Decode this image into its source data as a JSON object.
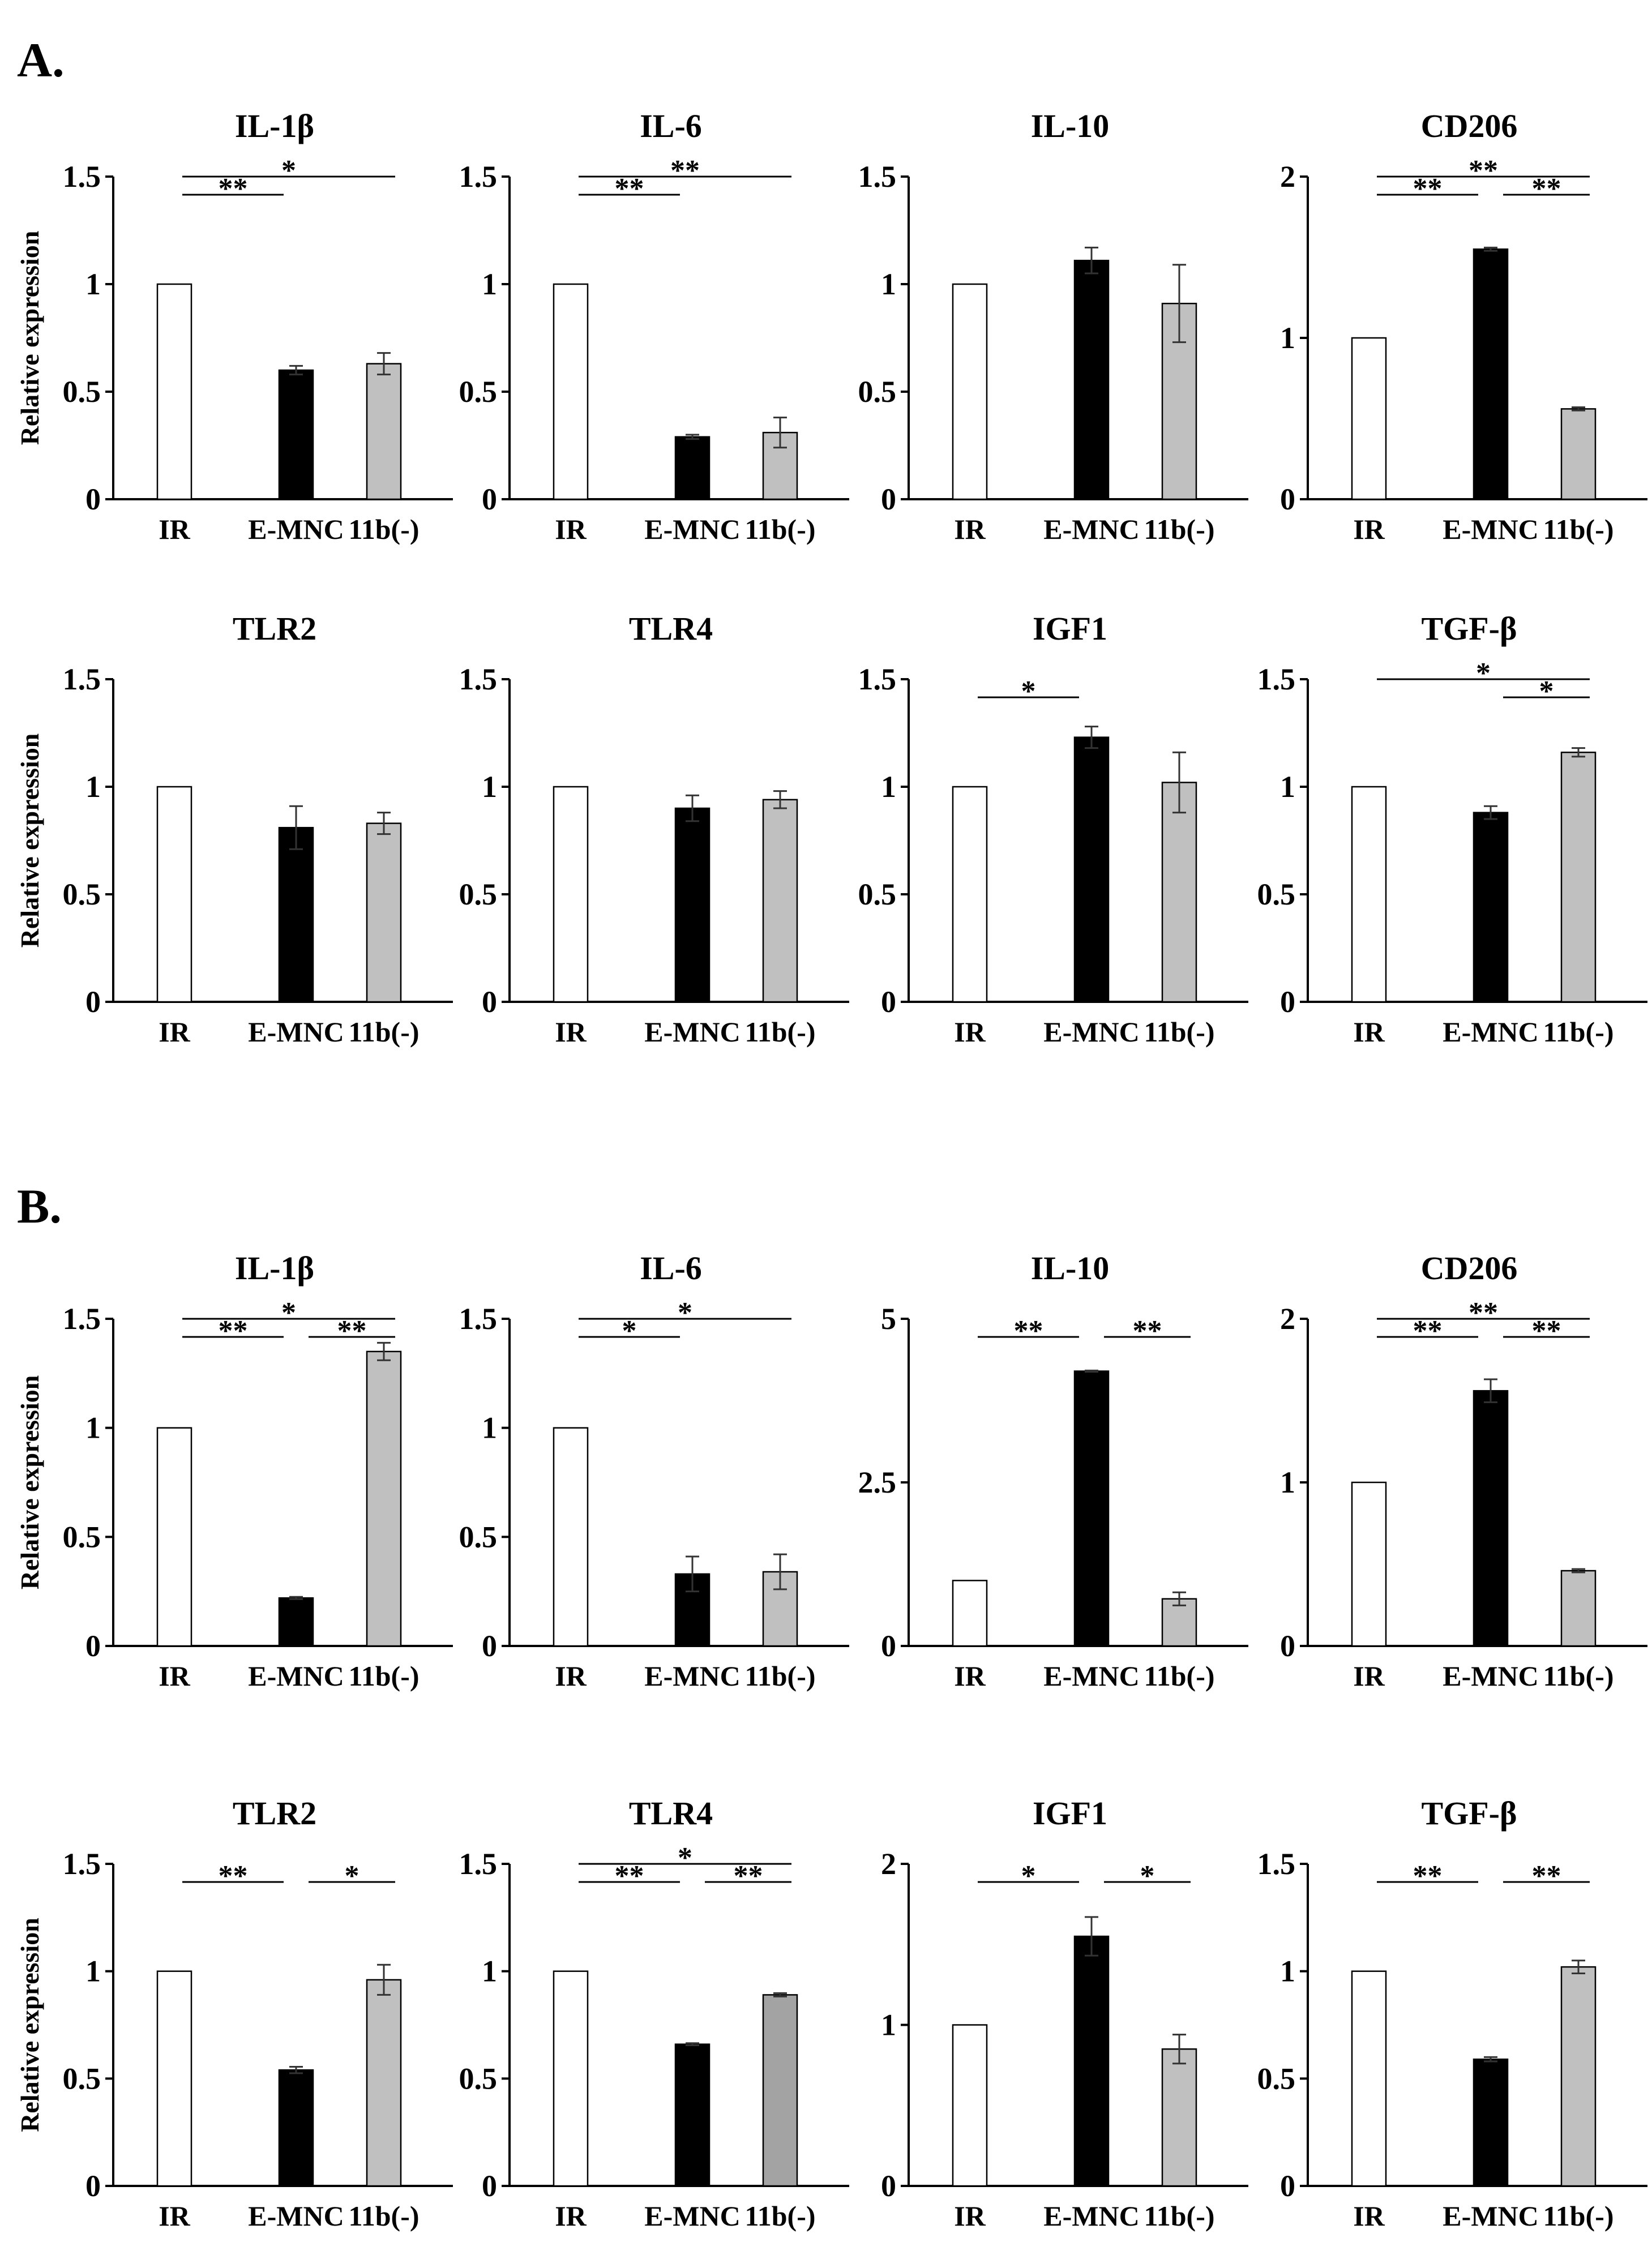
{
  "panels": [
    {
      "label": "A."
    },
    {
      "label": "B."
    }
  ],
  "colors": {
    "IR": "#ffffff",
    "E-MNC": "#000000",
    "11b(-)": "#c0c0c0",
    "11b(-)_dark": "#a3a3a3",
    "axis": "#000000",
    "bracket": "#000000"
  },
  "chart_data": [
    {
      "panel": "A",
      "type": "bar",
      "title": "IL-1β",
      "categories": [
        "IR",
        "E-MNC",
        "11b(-)"
      ],
      "values": [
        1.0,
        0.6,
        0.63
      ],
      "errors": [
        0,
        0.02,
        0.05
      ],
      "ylim": [
        0,
        1.5
      ],
      "yticks": [
        "0",
        "0.5",
        "1",
        "1.5"
      ],
      "ylabel": "Relative expression",
      "significance": [
        {
          "from": 0,
          "to": 1,
          "label": "**"
        },
        {
          "from": 0,
          "to": 2,
          "label": "*"
        }
      ]
    },
    {
      "panel": "A",
      "type": "bar",
      "title": "IL-6",
      "categories": [
        "IR",
        "E-MNC",
        "11b(-)"
      ],
      "values": [
        1.0,
        0.29,
        0.31
      ],
      "errors": [
        0,
        0.01,
        0.07
      ],
      "ylim": [
        0,
        1.5
      ],
      "yticks": [
        "0",
        "0.5",
        "1",
        "1.5"
      ],
      "ylabel": "",
      "significance": [
        {
          "from": 0,
          "to": 1,
          "label": "**"
        },
        {
          "from": 0,
          "to": 2,
          "label": "**"
        }
      ]
    },
    {
      "panel": "A",
      "type": "bar",
      "title": "IL-10",
      "categories": [
        "IR",
        "E-MNC",
        "11b(-)"
      ],
      "values": [
        1.0,
        1.11,
        0.91
      ],
      "errors": [
        0,
        0.06,
        0.18
      ],
      "ylim": [
        0,
        1.5
      ],
      "yticks": [
        "0",
        "0.5",
        "1",
        "1.5"
      ],
      "ylabel": "",
      "significance": []
    },
    {
      "panel": "A",
      "type": "bar",
      "title": "CD206",
      "categories": [
        "IR",
        "E-MNC",
        "11b(-)"
      ],
      "values": [
        1.0,
        1.55,
        0.56
      ],
      "errors": [
        0,
        0.01,
        0.01
      ],
      "ylim": [
        0,
        2
      ],
      "yticks": [
        "0",
        "1",
        "2"
      ],
      "ylabel": "",
      "significance": [
        {
          "from": 0,
          "to": 1,
          "label": "**"
        },
        {
          "from": 1,
          "to": 2,
          "label": "**"
        },
        {
          "from": 0,
          "to": 2,
          "label": "**"
        }
      ]
    },
    {
      "panel": "A",
      "type": "bar",
      "title": "TLR2",
      "categories": [
        "IR",
        "E-MNC",
        "11b(-)"
      ],
      "values": [
        1.0,
        0.81,
        0.83
      ],
      "errors": [
        0,
        0.1,
        0.05
      ],
      "ylim": [
        0,
        1.5
      ],
      "yticks": [
        "0",
        "0.5",
        "1",
        "1.5"
      ],
      "ylabel": "Relative expression",
      "significance": []
    },
    {
      "panel": "A",
      "type": "bar",
      "title": "TLR4",
      "categories": [
        "IR",
        "E-MNC",
        "11b(-)"
      ],
      "values": [
        1.0,
        0.9,
        0.94
      ],
      "errors": [
        0,
        0.06,
        0.04
      ],
      "ylim": [
        0,
        1.5
      ],
      "yticks": [
        "0",
        "0.5",
        "1",
        "1.5"
      ],
      "ylabel": "",
      "significance": []
    },
    {
      "panel": "A",
      "type": "bar",
      "title": "IGF1",
      "categories": [
        "IR",
        "E-MNC",
        "11b(-)"
      ],
      "values": [
        1.0,
        1.23,
        1.02
      ],
      "errors": [
        0,
        0.05,
        0.14
      ],
      "ylim": [
        0,
        1.5
      ],
      "yticks": [
        "0",
        "0.5",
        "1",
        "1.5"
      ],
      "ylabel": "",
      "significance": [
        {
          "from": 0,
          "to": 1,
          "label": "*"
        }
      ]
    },
    {
      "panel": "A",
      "type": "bar",
      "title": "TGF-β",
      "categories": [
        "IR",
        "E-MNC",
        "11b(-)"
      ],
      "values": [
        1.0,
        0.88,
        1.16
      ],
      "errors": [
        0,
        0.03,
        0.02
      ],
      "ylim": [
        0,
        1.5
      ],
      "yticks": [
        "0",
        "0.5",
        "1",
        "1.5"
      ],
      "ylabel": "",
      "significance": [
        {
          "from": 1,
          "to": 2,
          "label": "*"
        },
        {
          "from": 0,
          "to": 2,
          "label": "*"
        }
      ]
    },
    {
      "panel": "B",
      "type": "bar",
      "title": "IL-1β",
      "categories": [
        "IR",
        "E-MNC",
        "11b(-)"
      ],
      "values": [
        1.0,
        0.22,
        1.35
      ],
      "errors": [
        0,
        0.005,
        0.04
      ],
      "ylim": [
        0,
        1.5
      ],
      "yticks": [
        "0",
        "0.5",
        "1",
        "1.5"
      ],
      "ylabel": "Relative expression",
      "significance": [
        {
          "from": 0,
          "to": 1,
          "label": "**"
        },
        {
          "from": 1,
          "to": 2,
          "label": "**"
        },
        {
          "from": 0,
          "to": 2,
          "label": "*"
        }
      ]
    },
    {
      "panel": "B",
      "type": "bar",
      "title": "IL-6",
      "categories": [
        "IR",
        "E-MNC",
        "11b(-)"
      ],
      "values": [
        1.0,
        0.33,
        0.34
      ],
      "errors": [
        0,
        0.08,
        0.08
      ],
      "ylim": [
        0,
        1.5
      ],
      "yticks": [
        "0",
        "0.5",
        "1",
        "1.5"
      ],
      "ylabel": "",
      "significance": [
        {
          "from": 0,
          "to": 1,
          "label": "*"
        },
        {
          "from": 0,
          "to": 2,
          "label": "*"
        }
      ]
    },
    {
      "panel": "B",
      "type": "bar",
      "title": "IL-10",
      "categories": [
        "IR",
        "E-MNC",
        "11b(-)"
      ],
      "values": [
        1.0,
        4.2,
        0.72
      ],
      "errors": [
        0,
        0.01,
        0.1
      ],
      "ylim": [
        0,
        5
      ],
      "yticks": [
        "0",
        "2.5",
        "5"
      ],
      "ylabel": "",
      "significance": [
        {
          "from": 0,
          "to": 1,
          "label": "**"
        },
        {
          "from": 1,
          "to": 2,
          "label": "**"
        }
      ]
    },
    {
      "panel": "B",
      "type": "bar",
      "title": "CD206",
      "categories": [
        "IR",
        "E-MNC",
        "11b(-)"
      ],
      "values": [
        1.0,
        1.56,
        0.46
      ],
      "errors": [
        0,
        0.07,
        0.01
      ],
      "ylim": [
        0,
        2
      ],
      "yticks": [
        "0",
        "1",
        "2"
      ],
      "ylabel": "",
      "significance": [
        {
          "from": 0,
          "to": 1,
          "label": "**"
        },
        {
          "from": 1,
          "to": 2,
          "label": "**"
        },
        {
          "from": 0,
          "to": 2,
          "label": "**"
        }
      ]
    },
    {
      "panel": "B",
      "type": "bar",
      "title": "TLR2",
      "categories": [
        "IR",
        "E-MNC",
        "11b(-)"
      ],
      "values": [
        1.0,
        0.54,
        0.96
      ],
      "errors": [
        0,
        0.015,
        0.07
      ],
      "ylim": [
        0,
        1.5
      ],
      "yticks": [
        "0",
        "0.5",
        "1",
        "1.5"
      ],
      "ylabel": "Relative expression",
      "significance": [
        {
          "from": 0,
          "to": 1,
          "label": "**"
        },
        {
          "from": 1,
          "to": 2,
          "label": "*"
        }
      ]
    },
    {
      "panel": "B",
      "type": "bar",
      "title": "TLR4",
      "categories": [
        "IR",
        "E-MNC",
        "11b(-)"
      ],
      "values": [
        1.0,
        0.66,
        0.89
      ],
      "errors": [
        0,
        0.005,
        0.008
      ],
      "ylim": [
        0,
        1.5
      ],
      "yticks": [
        "0",
        "0.5",
        "1",
        "1.5"
      ],
      "ylabel": "",
      "significance": [
        {
          "from": 0,
          "to": 1,
          "label": "**"
        },
        {
          "from": 1,
          "to": 2,
          "label": "**"
        },
        {
          "from": 0,
          "to": 2,
          "label": "*"
        }
      ],
      "dark_third": true
    },
    {
      "panel": "B",
      "type": "bar",
      "title": "IGF1",
      "categories": [
        "IR",
        "E-MNC",
        "11b(-)"
      ],
      "values": [
        1.0,
        1.55,
        0.85
      ],
      "errors": [
        0,
        0.12,
        0.09
      ],
      "ylim": [
        0,
        2
      ],
      "yticks": [
        "0",
        "1",
        "2"
      ],
      "ylabel": "",
      "significance": [
        {
          "from": 0,
          "to": 1,
          "label": "*"
        },
        {
          "from": 1,
          "to": 2,
          "label": "*"
        }
      ]
    },
    {
      "panel": "B",
      "type": "bar",
      "title": "TGF-β",
      "categories": [
        "IR",
        "E-MNC",
        "11b(-)"
      ],
      "values": [
        1.0,
        0.59,
        1.02
      ],
      "errors": [
        0,
        0.01,
        0.03
      ],
      "ylim": [
        0,
        1.5
      ],
      "yticks": [
        "0",
        "0.5",
        "1",
        "1.5"
      ],
      "ylabel": "",
      "significance": [
        {
          "from": 0,
          "to": 1,
          "label": "**"
        },
        {
          "from": 1,
          "to": 2,
          "label": "**"
        }
      ]
    }
  ]
}
